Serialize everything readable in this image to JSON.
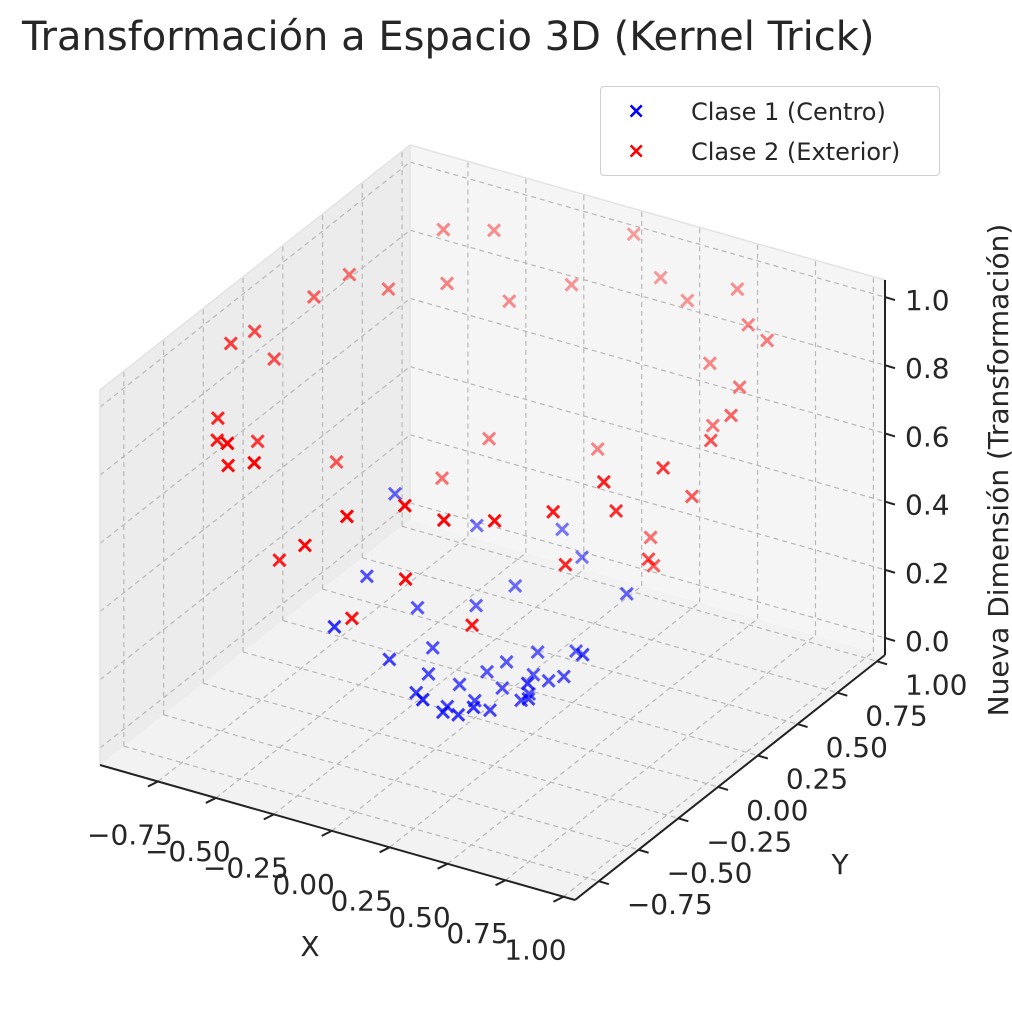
{
  "chart_data": {
    "type": "scatter",
    "projection": "3d",
    "title": "Transformación a Espacio 3D (Kernel Trick)",
    "xlabel": "X",
    "ylabel": "Y",
    "zlabel": "Nueva Dimensión (Transformación)",
    "xlim": [
      -1.0,
      1.05
    ],
    "ylim": [
      -0.9,
      1.05
    ],
    "zlim": [
      -0.05,
      1.05
    ],
    "xticks": [
      "−0.75",
      "−0.50",
      "−0.25",
      "0.00",
      "0.25",
      "0.50",
      "0.75",
      "1.00"
    ],
    "yticks": [
      "−0.75",
      "−0.50",
      "−0.25",
      "0.00",
      "0.25",
      "0.50",
      "0.75",
      "1.00"
    ],
    "zticks": [
      "0.0",
      "0.2",
      "0.4",
      "0.6",
      "0.8",
      "1.0"
    ],
    "grid": true,
    "legend_position": "top-right",
    "marker": "x",
    "series": [
      {
        "name": "Clase 1 (Centro)",
        "color": "#0000ff",
        "points": [
          [
            0.0,
            0.0,
            0.0
          ],
          [
            0.05,
            0.1,
            0.01
          ],
          [
            -0.1,
            0.05,
            0.01
          ],
          [
            0.1,
            -0.05,
            0.01
          ],
          [
            -0.05,
            -0.1,
            0.01
          ],
          [
            0.15,
            0.15,
            0.05
          ],
          [
            -0.15,
            -0.15,
            0.05
          ],
          [
            0.2,
            0.0,
            0.04
          ],
          [
            0.0,
            0.2,
            0.04
          ],
          [
            -0.2,
            0.0,
            0.04
          ],
          [
            0.0,
            -0.2,
            0.04
          ],
          [
            0.25,
            0.1,
            0.07
          ],
          [
            -0.25,
            0.1,
            0.07
          ],
          [
            0.1,
            0.25,
            0.07
          ],
          [
            0.1,
            -0.25,
            0.07
          ],
          [
            0.3,
            -0.1,
            0.1
          ],
          [
            -0.3,
            -0.1,
            0.1
          ],
          [
            0.3,
            0.2,
            0.13
          ],
          [
            -0.2,
            0.3,
            0.13
          ],
          [
            0.2,
            -0.3,
            0.13
          ],
          [
            -0.35,
            0.15,
            0.15
          ],
          [
            0.35,
            0.05,
            0.12
          ],
          [
            -0.1,
            0.4,
            0.17
          ],
          [
            0.05,
            -0.4,
            0.16
          ],
          [
            0.4,
            -0.25,
            0.22
          ],
          [
            -0.4,
            -0.3,
            0.25
          ],
          [
            -0.3,
            0.45,
            0.29
          ],
          [
            0.45,
            0.3,
            0.29
          ],
          [
            0.12,
            0.5,
            0.26
          ],
          [
            -0.5,
            0.05,
            0.25
          ],
          [
            0.5,
            -0.05,
            0.25
          ],
          [
            0.0,
            0.55,
            0.3
          ],
          [
            -0.55,
            0.3,
            0.39
          ],
          [
            0.2,
            0.05,
            0.04
          ],
          [
            -0.05,
            0.15,
            0.02
          ]
        ]
      },
      {
        "name": "Clase 2 (Exterior)",
        "color": "#ff0000",
        "points": [
          [
            0.0,
            1.0,
            1.0
          ],
          [
            0.3,
            0.9,
            0.9
          ],
          [
            -0.5,
            0.85,
            0.97
          ],
          [
            0.7,
            0.7,
            0.98
          ],
          [
            -0.9,
            0.3,
            0.9
          ],
          [
            0.95,
            -0.2,
            0.94
          ],
          [
            -0.95,
            0.0,
            0.9
          ],
          [
            0.85,
            -0.35,
            0.85
          ],
          [
            -0.8,
            -0.45,
            0.84
          ],
          [
            0.6,
            -0.75,
            0.92
          ],
          [
            -0.3,
            -0.95,
            0.99
          ],
          [
            0.1,
            -0.95,
            0.91
          ],
          [
            0.45,
            -0.85,
            0.93
          ],
          [
            -0.7,
            -0.6,
            0.85
          ],
          [
            0.8,
            0.5,
            0.89
          ],
          [
            -0.85,
            0.45,
            0.92
          ],
          [
            0.9,
            0.3,
            0.9
          ],
          [
            0.5,
            0.75,
            0.81
          ],
          [
            -0.2,
            0.9,
            0.85
          ],
          [
            -0.6,
            0.7,
            0.85
          ],
          [
            0.65,
            0.55,
            0.73
          ],
          [
            -0.75,
            0.55,
            0.86
          ],
          [
            0.75,
            -0.6,
            0.92
          ],
          [
            -0.55,
            -0.75,
            0.86
          ],
          [
            0.25,
            -0.8,
            0.7
          ],
          [
            -0.4,
            0.8,
            0.8
          ],
          [
            0.95,
            0.1,
            0.91
          ],
          [
            -0.95,
            -0.15,
            0.92
          ],
          [
            0.35,
            -0.95,
            0.99
          ],
          [
            -0.15,
            -0.85,
            0.74
          ],
          [
            0.55,
            0.85,
            1.0
          ],
          [
            -0.65,
            0.75,
            0.98
          ],
          [
            0.85,
            0.6,
            1.0
          ],
          [
            0.15,
            0.95,
            0.92
          ],
          [
            -0.45,
            -0.9,
            1.0
          ],
          [
            0.7,
            -0.45,
            0.7
          ],
          [
            -0.9,
            0.05,
            0.81
          ],
          [
            0.6,
            0.25,
            0.42
          ],
          [
            -0.5,
            -0.5,
            0.5
          ],
          [
            0.9,
            -0.5,
            1.0
          ],
          [
            -0.35,
            0.6,
            0.48
          ],
          [
            0.4,
            -0.6,
            0.52
          ],
          [
            0.8,
            0.2,
            0.68
          ],
          [
            -0.8,
            -0.2,
            0.68
          ],
          [
            0.05,
            0.7,
            0.49
          ],
          [
            -0.05,
            -0.7,
            0.49
          ],
          [
            0.45,
            0.45,
            0.4
          ],
          [
            -0.45,
            0.45,
            0.4
          ],
          [
            0.75,
            0.0,
            0.56
          ],
          [
            -0.7,
            0.15,
            0.51
          ]
        ]
      }
    ]
  }
}
